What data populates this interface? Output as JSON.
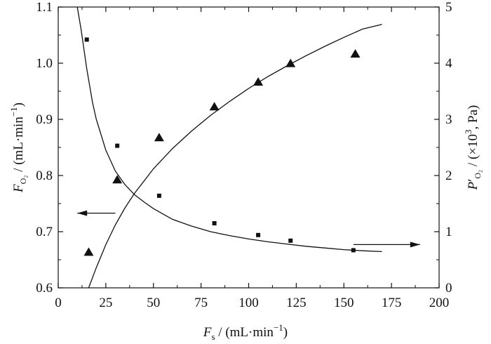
{
  "chart_data": {
    "type": "scatter",
    "x_axis": {
      "label_main": "F",
      "label_sub": "s",
      "label_unit": " / (mL·min",
      "label_sup": "−1",
      "label_close": ")",
      "range": [
        0,
        200
      ],
      "ticks": [
        0,
        25,
        50,
        75,
        100,
        125,
        150,
        175,
        200
      ],
      "tick_labels": [
        "0",
        "25",
        "50",
        "75",
        "100",
        "125",
        "150",
        "175",
        "200"
      ]
    },
    "y_left": {
      "label_main": "F",
      "label_sub": "O₂",
      "label_unit": " / (mL·min",
      "label_sup": "−1",
      "label_close": ")",
      "range": [
        0.6,
        1.1
      ],
      "ticks": [
        0.6,
        0.7,
        0.8,
        0.9,
        1.0,
        1.1
      ],
      "tick_labels": [
        "0.6",
        "0.7",
        "0.8",
        "0.9",
        "1.0",
        "1.1"
      ]
    },
    "y_right": {
      "label_main": "P",
      "label_sub": "O₂",
      "label_prime": "′",
      "label_unit": " / (×10",
      "label_sup": "3",
      "label_close": ", Pa)",
      "range": [
        0,
        5
      ],
      "ticks": [
        0,
        1,
        2,
        3,
        4,
        5
      ],
      "tick_labels": [
        "0",
        "1",
        "2",
        "3",
        "4",
        "5"
      ]
    },
    "series": [
      {
        "axis": "left",
        "marker": "triangle",
        "points": [
          [
            16,
            0.663
          ],
          [
            31,
            0.792
          ],
          [
            53,
            0.867
          ],
          [
            82,
            0.922
          ],
          [
            105,
            0.966
          ],
          [
            122,
            0.999
          ],
          [
            156,
            1.016
          ]
        ]
      },
      {
        "axis": "right",
        "marker": "square",
        "points": [
          [
            15,
            4.42
          ],
          [
            31,
            2.53
          ],
          [
            53,
            1.64
          ],
          [
            82,
            1.15
          ],
          [
            105,
            0.94
          ],
          [
            122,
            0.84
          ],
          [
            155,
            0.67
          ]
        ]
      }
    ],
    "fit_curves": [
      {
        "axis": "left",
        "points": [
          [
            16,
            0.6
          ],
          [
            20,
            0.636
          ],
          [
            25,
            0.677
          ],
          [
            30,
            0.712
          ],
          [
            35,
            0.742
          ],
          [
            40,
            0.768
          ],
          [
            50,
            0.812
          ],
          [
            60,
            0.848
          ],
          [
            70,
            0.879
          ],
          [
            80,
            0.907
          ],
          [
            90,
            0.932
          ],
          [
            100,
            0.955
          ],
          [
            110,
            0.976
          ],
          [
            120,
            0.995
          ],
          [
            130,
            1.013
          ],
          [
            140,
            1.03
          ],
          [
            150,
            1.046
          ],
          [
            160,
            1.061
          ],
          [
            170,
            1.069
          ]
        ]
      },
      {
        "axis": "right",
        "points": [
          [
            10,
            5.0
          ],
          [
            12,
            4.6
          ],
          [
            15,
            3.9
          ],
          [
            18,
            3.3
          ],
          [
            20,
            3.0
          ],
          [
            25,
            2.45
          ],
          [
            30,
            2.08
          ],
          [
            35,
            1.84
          ],
          [
            40,
            1.66
          ],
          [
            45,
            1.53
          ],
          [
            50,
            1.41
          ],
          [
            60,
            1.22
          ],
          [
            70,
            1.1
          ],
          [
            80,
            1.0
          ],
          [
            90,
            0.93
          ],
          [
            100,
            0.87
          ],
          [
            110,
            0.82
          ],
          [
            120,
            0.78
          ],
          [
            130,
            0.74
          ],
          [
            140,
            0.71
          ],
          [
            150,
            0.68
          ],
          [
            160,
            0.66
          ],
          [
            170,
            0.645
          ]
        ]
      }
    ],
    "axis_arrows": [
      {
        "direction": "left",
        "x_from": 30,
        "x_to": 10,
        "y": 0.733,
        "axis": "left"
      },
      {
        "direction": "right",
        "x_from": 155,
        "x_to": 190,
        "y": 0.77,
        "axis": "right"
      }
    ],
    "grid": false,
    "legend": "none"
  }
}
